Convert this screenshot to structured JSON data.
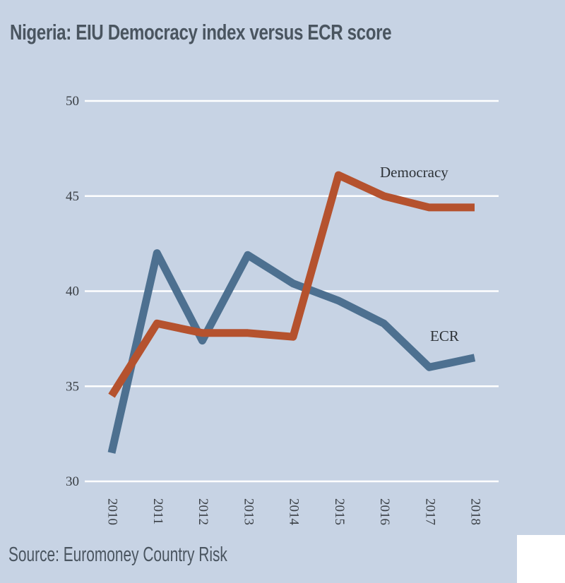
{
  "title": "Nigeria: EIU Democracy index versus ECR score",
  "source": "Source: Euromoney Country Risk",
  "colors": {
    "background": "#c7d3e4",
    "gridline": "#ffffff",
    "democracy": "#b5522e",
    "ecr": "#4d7090"
  },
  "chart_data": {
    "type": "line",
    "title": "Nigeria: EIU Democracy index versus ECR score",
    "xlabel": "",
    "ylabel": "",
    "categories": [
      "2010",
      "2011",
      "2012",
      "2013",
      "2014",
      "2015",
      "2016",
      "2017",
      "2018"
    ],
    "ylim": [
      30,
      50
    ],
    "yticks": [
      30,
      35,
      40,
      45,
      50
    ],
    "grid": true,
    "legend": "inline labels",
    "series": [
      {
        "name": "Democracy",
        "color": "#b5522e",
        "values": [
          34.5,
          38.3,
          37.8,
          37.8,
          37.6,
          46.1,
          45.0,
          44.4,
          44.4
        ]
      },
      {
        "name": "ECR",
        "color": "#4d7090",
        "values": [
          31.5,
          42.0,
          37.4,
          41.9,
          40.4,
          39.5,
          38.3,
          36.0,
          36.5
        ]
      }
    ]
  }
}
